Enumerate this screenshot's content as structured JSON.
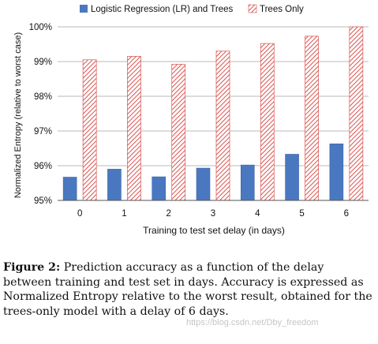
{
  "chart_data": {
    "type": "bar",
    "categories": [
      "0",
      "1",
      "2",
      "3",
      "4",
      "5",
      "6"
    ],
    "series": [
      {
        "name": "Logistic Regression (LR) and Trees",
        "values": [
          95.67,
          95.9,
          95.68,
          95.93,
          96.02,
          96.33,
          96.63
        ],
        "color": "#4a78c0",
        "pattern": "solid"
      },
      {
        "name": "Trees Only",
        "values": [
          99.05,
          99.15,
          98.92,
          99.3,
          99.52,
          99.73,
          100.0
        ],
        "color": "#d9534f",
        "pattern": "diagonal-hatch"
      }
    ],
    "ylim": [
      95,
      100
    ],
    "yticks": [
      "95%",
      "96%",
      "97%",
      "98%",
      "99%",
      "100%"
    ],
    "ylabel": "Normalized Entropy (relative to worst case)",
    "xlabel": "Training to test set delay (in days)",
    "grid": "horizontal",
    "legend_position": "top"
  },
  "caption": {
    "label": "Figure 2:",
    "text": "Prediction accuracy as a function of the delay between training and test set in days. Accuracy is expressed as Normalized Entropy relative to the worst result, obtained for the trees-only model with a delay of 6 days."
  },
  "watermark": "https://blog.csdn.net/Dby_freedom"
}
